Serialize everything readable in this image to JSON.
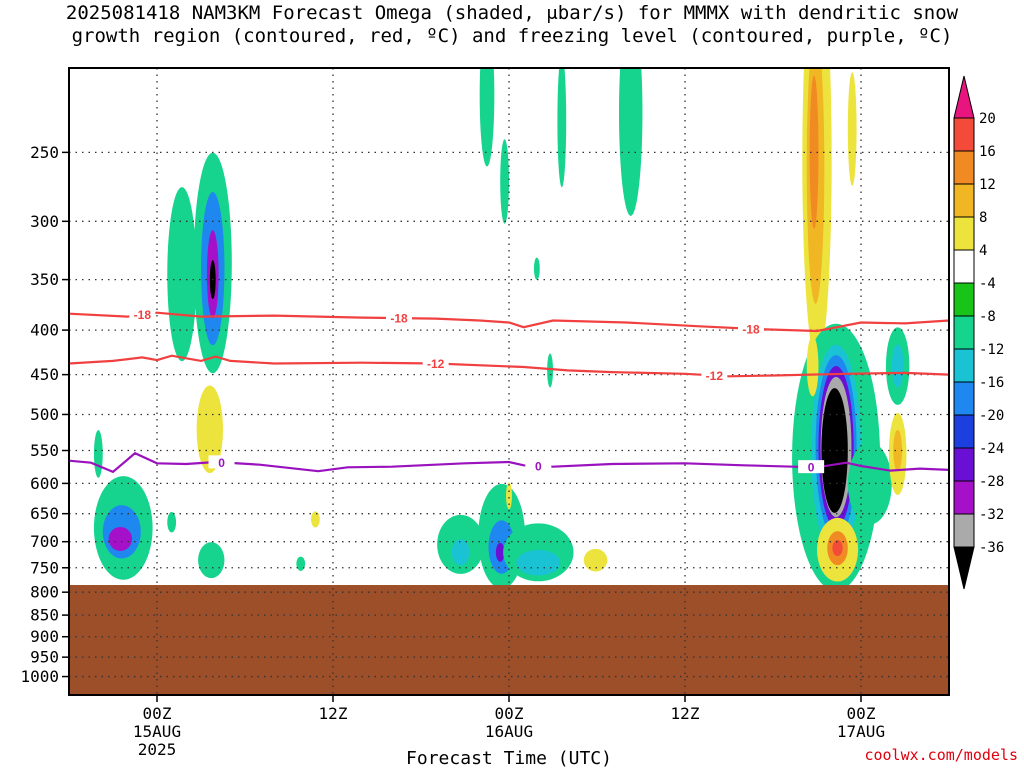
{
  "title": {
    "line1": "2025081418 NAM3KM Forecast Omega (shaded, μbar/s) for MMMX with dendritic snow",
    "line2": "growth region (contoured, red, ºC) and freezing level (contoured, purple, ºC)"
  },
  "credit": "coolwx.com/models",
  "colors": {
    "terrain": "#9c4f28",
    "dendritic_contour": "#f04040",
    "freezing_contour": "#9a12be",
    "grid": "#888888"
  },
  "chart_data": {
    "type": "heatmap",
    "xlabel": "Forecast Time (UTC)",
    "ylabel": "",
    "x_ticks": [
      {
        "hour": 6,
        "line1": "00Z",
        "line2": "15AUG",
        "line3": "2025"
      },
      {
        "hour": 18,
        "line1": "12Z",
        "line2": "",
        "line3": ""
      },
      {
        "hour": 30,
        "line1": "00Z",
        "line2": "16AUG",
        "line3": ""
      },
      {
        "hour": 42,
        "line1": "12Z",
        "line2": "",
        "line3": ""
      },
      {
        "hour": 54,
        "line1": "00Z",
        "line2": "17AUG",
        "line3": ""
      }
    ],
    "xlim": [
      0,
      60
    ],
    "y_scale": "pressure (top 200 mb, bottom 1050 mb)",
    "ylim": [
      1050,
      200
    ],
    "y_ticks": [
      "250",
      "300",
      "350",
      "400",
      "450",
      "500",
      "550",
      "600",
      "650",
      "700",
      "750",
      "800",
      "850",
      "900",
      "950",
      "1000"
    ],
    "surface_pressure_mb": 785,
    "colorbar": {
      "labels": [
        "20",
        "16",
        "12",
        "8",
        "4",
        "-4",
        "-8",
        "-12",
        "-16",
        "-20",
        "-24",
        "-28",
        "-32",
        "-36"
      ],
      "colors": [
        "#e9157f",
        "#f44a3a",
        "#f08a23",
        "#f0b623",
        "#ede33d",
        "#ffffff",
        "#19c419",
        "#16d48e",
        "#19c3d4",
        "#1e88f0",
        "#1c3fe0",
        "#6a10d4",
        "#a411c8",
        "#aaaaaa",
        "#000000"
      ]
    },
    "dendritic_contours": [
      {
        "label": "-18",
        "label_hours": [
          5.0,
          22.5,
          46.5
        ],
        "points": [
          [
            0,
            383
          ],
          [
            4,
            386
          ],
          [
            6,
            382
          ],
          [
            9,
            386
          ],
          [
            14,
            385
          ],
          [
            20,
            387
          ],
          [
            25,
            388
          ],
          [
            28,
            390
          ],
          [
            30,
            392
          ],
          [
            31,
            397
          ],
          [
            33,
            390
          ],
          [
            38,
            392
          ],
          [
            43,
            396
          ],
          [
            47,
            399
          ],
          [
            51,
            401
          ],
          [
            52,
            398
          ],
          [
            54,
            392
          ],
          [
            57,
            393
          ],
          [
            60,
            390
          ]
        ]
      },
      {
        "label": "-12",
        "label_hours": [
          25.0,
          44.0
        ],
        "points": [
          [
            0,
            437
          ],
          [
            3,
            434
          ],
          [
            5,
            430
          ],
          [
            6,
            433
          ],
          [
            7,
            428
          ],
          [
            8,
            431
          ],
          [
            9,
            434
          ],
          [
            10,
            429
          ],
          [
            11,
            434
          ],
          [
            14,
            437
          ],
          [
            20,
            436
          ],
          [
            25,
            437
          ],
          [
            31,
            441
          ],
          [
            34,
            445
          ],
          [
            37,
            447
          ],
          [
            42,
            449
          ],
          [
            45,
            452
          ],
          [
            48,
            451
          ],
          [
            53,
            449
          ],
          [
            57,
            448
          ],
          [
            60,
            450
          ]
        ]
      }
    ],
    "freezing_contours": [
      {
        "label": "0",
        "label_hours": [
          10.4,
          32.0,
          50.6
        ],
        "points": [
          [
            0,
            565
          ],
          [
            1.5,
            568
          ],
          [
            3,
            582
          ],
          [
            4.5,
            554
          ],
          [
            6,
            569
          ],
          [
            8,
            570
          ],
          [
            10,
            567
          ],
          [
            13,
            571
          ],
          [
            17,
            581
          ],
          [
            19,
            575
          ],
          [
            22,
            574
          ],
          [
            27,
            569
          ],
          [
            30,
            567
          ],
          [
            31,
            572
          ],
          [
            33,
            574
          ],
          [
            37,
            570
          ],
          [
            42,
            569
          ],
          [
            46,
            572
          ],
          [
            51,
            575
          ],
          [
            53,
            568
          ],
          [
            54,
            573
          ],
          [
            56,
            580
          ],
          [
            58,
            577
          ],
          [
            60,
            579
          ]
        ]
      }
    ],
    "omega_regions": [
      {
        "cx": 3.7,
        "cy": 675,
        "rx": 2.0,
        "ry": 92,
        "value": -8
      },
      {
        "cx": 3.6,
        "cy": 682,
        "rx": 1.3,
        "ry": 48,
        "value": -16
      },
      {
        "cx": 3.5,
        "cy": 695,
        "rx": 0.8,
        "ry": 22,
        "value": -28
      },
      {
        "cx": 2.0,
        "cy": 555,
        "rx": 0.3,
        "ry": 35,
        "value": -8
      },
      {
        "cx": 7.7,
        "cy": 345,
        "rx": 1.0,
        "ry": 78,
        "value": -8
      },
      {
        "cx": 9.8,
        "cy": 335,
        "rx": 1.3,
        "ry": 95,
        "value": -8
      },
      {
        "cx": 9.8,
        "cy": 340,
        "rx": 0.8,
        "ry": 68,
        "value": -16
      },
      {
        "cx": 9.8,
        "cy": 345,
        "rx": 0.4,
        "ry": 40,
        "value": -28
      },
      {
        "cx": 9.8,
        "cy": 350,
        "rx": 0.2,
        "ry": 18,
        "value": -36
      },
      {
        "cx": 9.6,
        "cy": 520,
        "rx": 0.9,
        "ry": 60,
        "value": 4
      },
      {
        "cx": 9.7,
        "cy": 735,
        "rx": 0.9,
        "ry": 35,
        "value": -8
      },
      {
        "cx": 7.0,
        "cy": 665,
        "rx": 0.3,
        "ry": 18,
        "value": -8
      },
      {
        "cx": 16.8,
        "cy": 660,
        "rx": 0.3,
        "ry": 14,
        "value": 4
      },
      {
        "cx": 15.8,
        "cy": 742,
        "rx": 0.3,
        "ry": 14,
        "value": -8
      },
      {
        "cx": 28.5,
        "cy": 215,
        "rx": 0.5,
        "ry": 40,
        "value": -8
      },
      {
        "cx": 29.7,
        "cy": 270,
        "rx": 0.3,
        "ry": 30,
        "value": -8
      },
      {
        "cx": 31.9,
        "cy": 340,
        "rx": 0.2,
        "ry": 10,
        "value": -8
      },
      {
        "cx": 33.6,
        "cy": 230,
        "rx": 0.3,
        "ry": 40,
        "value": -8
      },
      {
        "cx": 38.3,
        "cy": 225,
        "rx": 0.8,
        "ry": 60,
        "value": -8
      },
      {
        "cx": 26.7,
        "cy": 705,
        "rx": 1.6,
        "ry": 55,
        "value": -8
      },
      {
        "cx": 26.7,
        "cy": 720,
        "rx": 0.6,
        "ry": 25,
        "value": -12
      },
      {
        "cx": 29.5,
        "cy": 690,
        "rx": 1.6,
        "ry": 95,
        "value": -8
      },
      {
        "cx": 29.5,
        "cy": 710,
        "rx": 0.9,
        "ry": 50,
        "value": -16
      },
      {
        "cx": 29.4,
        "cy": 720,
        "rx": 0.3,
        "ry": 18,
        "value": -24
      },
      {
        "cx": 32.0,
        "cy": 720,
        "rx": 2.4,
        "ry": 55,
        "value": -8
      },
      {
        "cx": 32.0,
        "cy": 740,
        "rx": 1.5,
        "ry": 25,
        "value": -12
      },
      {
        "cx": 30.0,
        "cy": 620,
        "rx": 0.2,
        "ry": 22,
        "value": 4
      },
      {
        "cx": 32.8,
        "cy": 445,
        "rx": 0.2,
        "ry": 20,
        "value": -8
      },
      {
        "cx": 35.9,
        "cy": 735,
        "rx": 0.8,
        "ry": 22,
        "value": 4
      },
      {
        "cx": 51.0,
        "cy": 255,
        "rx": 1.0,
        "ry": 125,
        "value": 4
      },
      {
        "cx": 50.9,
        "cy": 260,
        "rx": 0.6,
        "ry": 90,
        "value": 8
      },
      {
        "cx": 50.8,
        "cy": 250,
        "rx": 0.3,
        "ry": 50,
        "value": 12
      },
      {
        "cx": 53.4,
        "cy": 235,
        "rx": 0.3,
        "ry": 35,
        "value": 4
      },
      {
        "cx": 52.3,
        "cy": 560,
        "rx": 3.0,
        "ry": 190,
        "value": -8
      },
      {
        "cx": 52.3,
        "cy": 550,
        "rx": 1.7,
        "ry": 150,
        "value": -12
      },
      {
        "cx": 52.3,
        "cy": 545,
        "rx": 1.4,
        "ry": 130,
        "value": -16
      },
      {
        "cx": 52.3,
        "cy": 545,
        "rx": 1.2,
        "ry": 115,
        "value": -24
      },
      {
        "cx": 52.3,
        "cy": 545,
        "rx": 1.05,
        "ry": 100,
        "value": -32
      },
      {
        "cx": 52.2,
        "cy": 550,
        "rx": 0.9,
        "ry": 90,
        "value": -36
      },
      {
        "cx": 52.4,
        "cy": 715,
        "rx": 1.4,
        "ry": 60,
        "value": 4
      },
      {
        "cx": 52.4,
        "cy": 712,
        "rx": 0.7,
        "ry": 32,
        "value": 12
      },
      {
        "cx": 52.4,
        "cy": 712,
        "rx": 0.35,
        "ry": 15,
        "value": 16
      },
      {
        "cx": 54.6,
        "cy": 600,
        "rx": 1.5,
        "ry": 65,
        "value": -8
      },
      {
        "cx": 56.5,
        "cy": 440,
        "rx": 0.8,
        "ry": 45,
        "value": -8
      },
      {
        "cx": 56.5,
        "cy": 440,
        "rx": 0.4,
        "ry": 25,
        "value": -12
      },
      {
        "cx": 56.5,
        "cy": 555,
        "rx": 0.6,
        "ry": 60,
        "value": 4
      },
      {
        "cx": 56.5,
        "cy": 550,
        "rx": 0.3,
        "ry": 30,
        "value": 8
      },
      {
        "cx": 50.7,
        "cy": 440,
        "rx": 0.4,
        "ry": 35,
        "value": 4
      }
    ]
  }
}
